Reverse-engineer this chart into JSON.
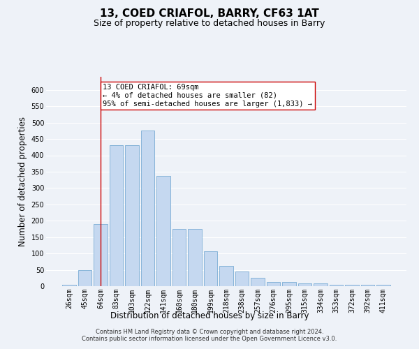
{
  "title": "13, COED CRIAFOL, BARRY, CF63 1AT",
  "subtitle": "Size of property relative to detached houses in Barry",
  "xlabel": "Distribution of detached houses by size in Barry",
  "ylabel": "Number of detached properties",
  "categories": [
    "26sqm",
    "45sqm",
    "64sqm",
    "83sqm",
    "103sqm",
    "122sqm",
    "141sqm",
    "160sqm",
    "180sqm",
    "199sqm",
    "218sqm",
    "238sqm",
    "257sqm",
    "276sqm",
    "295sqm",
    "315sqm",
    "334sqm",
    "353sqm",
    "372sqm",
    "392sqm",
    "411sqm"
  ],
  "values": [
    5,
    50,
    190,
    430,
    430,
    475,
    338,
    175,
    175,
    107,
    62,
    45,
    25,
    12,
    12,
    8,
    8,
    5,
    5,
    5,
    5
  ],
  "bar_color": "#c5d8f0",
  "bar_edge_color": "#7aadd4",
  "vline_x_index": 2,
  "vline_color": "#cc0000",
  "annotation_line1": "13 COED CRIAFOL: 69sqm",
  "annotation_line2": "← 4% of detached houses are smaller (82)",
  "annotation_line3": "95% of semi-detached houses are larger (1,833) →",
  "annotation_box_facecolor": "#ffffff",
  "annotation_box_edgecolor": "#cc0000",
  "ylim": [
    0,
    640
  ],
  "yticks": [
    0,
    50,
    100,
    150,
    200,
    250,
    300,
    350,
    400,
    450,
    500,
    550,
    600
  ],
  "footer_text": "Contains HM Land Registry data © Crown copyright and database right 2024.\nContains public sector information licensed under the Open Government Licence v3.0.",
  "background_color": "#eef2f8",
  "grid_color": "#ffffff",
  "title_fontsize": 11,
  "subtitle_fontsize": 9,
  "axis_label_fontsize": 8.5,
  "tick_fontsize": 7,
  "annotation_fontsize": 7.5,
  "footer_fontsize": 6
}
